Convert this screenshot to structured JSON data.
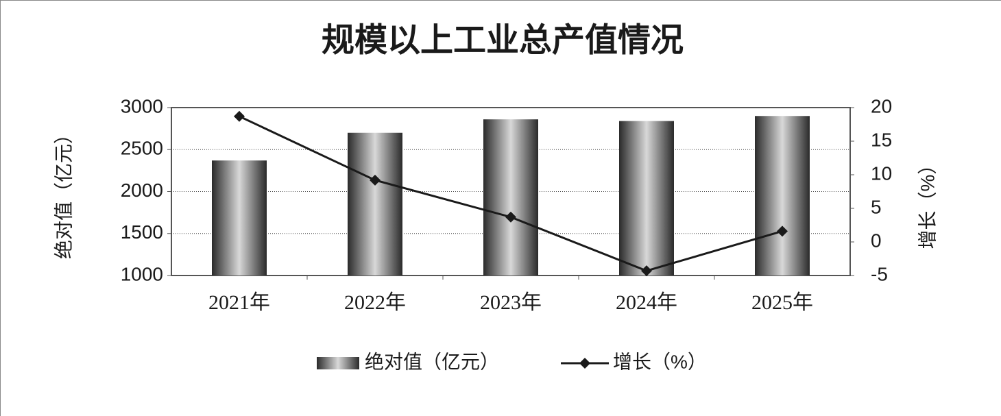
{
  "chart_data": {
    "type": "bar",
    "title": "规模以上工业总产值情况",
    "categories": [
      "2021年",
      "2022年",
      "2023年",
      "2024年",
      "2025年"
    ],
    "series": [
      {
        "name": "绝对值（亿元）",
        "type": "bar",
        "color": "#d8d8d8",
        "values": [
          2370,
          2700,
          2860,
          2840,
          2900
        ]
      },
      {
        "name": "增长（%）",
        "type": "line",
        "axis": "y2",
        "color": "#1a1a1a",
        "values": [
          18.7,
          9.2,
          3.7,
          -4.3,
          1.6
        ]
      }
    ],
    "y_label": "绝对值（亿元）",
    "y2_label": "增长（%）",
    "ylim": [
      1000,
      3000
    ],
    "yticks": [
      1000,
      1500,
      2000,
      2500,
      3000
    ],
    "y2lim": [
      -5,
      20
    ],
    "y2ticks": [
      -5,
      0,
      5,
      10,
      15,
      20
    ],
    "grid": true,
    "legend": "bottom"
  }
}
